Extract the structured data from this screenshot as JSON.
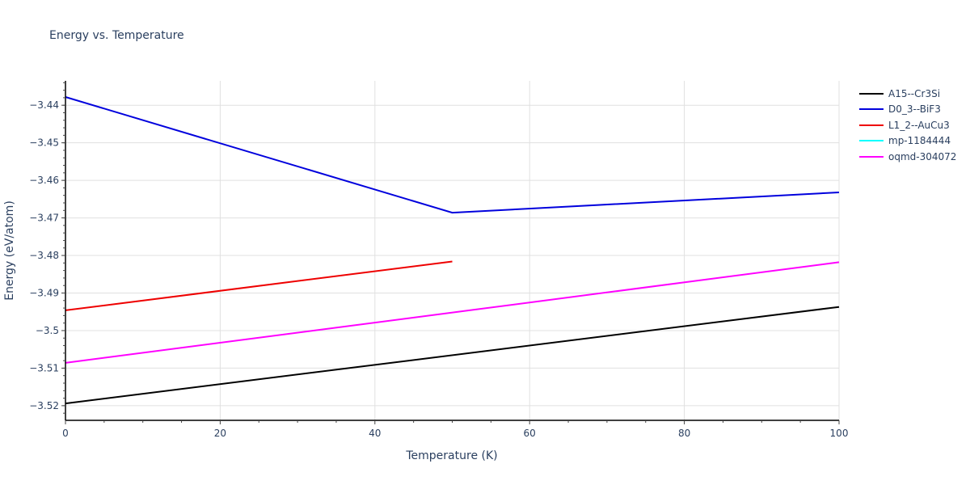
{
  "chart_data": {
    "type": "line",
    "title": "Energy vs. Temperature",
    "xlabel": "Temperature (K)",
    "ylabel": "Energy (eV/atom)",
    "xlim": [
      0,
      100
    ],
    "ylim": [
      -3.5239,
      -3.4335
    ],
    "x_ticks": [
      0,
      20,
      40,
      60,
      80,
      100
    ],
    "y_ticks": [
      -3.44,
      -3.45,
      -3.46,
      -3.47,
      -3.48,
      -3.49,
      -3.5,
      -3.51,
      -3.52
    ],
    "y_tick_labels": [
      "−3.44",
      "−3.45",
      "−3.46",
      "−3.47",
      "−3.48",
      "−3.49",
      "−3.5",
      "−3.51",
      "−3.52"
    ],
    "grid": true,
    "legend_position": "right",
    "series": [
      {
        "name": "A15--Cr3Si",
        "color": "#000000",
        "x": [
          0,
          100
        ],
        "y": [
          -3.5194,
          -3.4937
        ]
      },
      {
        "name": "D0_3--BiF3",
        "color": "#0000dd",
        "x": [
          0,
          50,
          100
        ],
        "y": [
          -3.4378,
          -3.4686,
          -3.4632
        ]
      },
      {
        "name": "L1_2--AuCu3",
        "color": "#ee0000",
        "x": [
          0,
          50
        ],
        "y": [
          -3.4946,
          -3.4816
        ]
      },
      {
        "name": "mp-1184444",
        "color": "#00ffff",
        "x": [],
        "y": []
      },
      {
        "name": "oqmd-304072",
        "color": "#ff00ff",
        "x": [
          0,
          100
        ],
        "y": [
          -3.5086,
          -3.4818
        ]
      }
    ]
  }
}
